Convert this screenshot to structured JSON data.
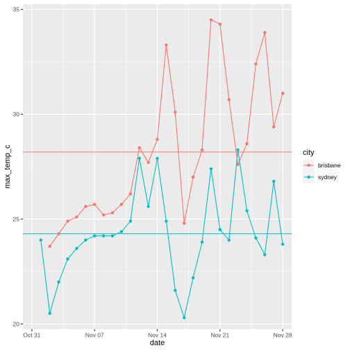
{
  "chart_data": {
    "type": "line",
    "xlabel": "date",
    "ylabel": "max_temp_c",
    "xlim": [
      "2023-10-30",
      "2023-11-29"
    ],
    "ylim": [
      19.75,
      35.25
    ],
    "x_ticks": [
      {
        "date": "2023-10-31",
        "label": "Oct 31"
      },
      {
        "date": "2023-11-07",
        "label": "Nov 07"
      },
      {
        "date": "2023-11-14",
        "label": "Nov 14"
      },
      {
        "date": "2023-11-21",
        "label": "Nov 21"
      },
      {
        "date": "2023-11-28",
        "label": "Nov 28"
      }
    ],
    "y_ticks": [
      20,
      25,
      30,
      35
    ],
    "grid": true,
    "legend": {
      "title": "city",
      "placement": "right"
    },
    "hlines": [
      {
        "series": "brisbane",
        "value": 28.2
      },
      {
        "series": "sydney",
        "value": 24.3
      }
    ],
    "series": [
      {
        "name": "brisbane",
        "color": "#F8766D",
        "points": [
          {
            "x": "2023-11-02",
            "y": 23.7
          },
          {
            "x": "2023-11-03",
            "y": 24.3
          },
          {
            "x": "2023-11-04",
            "y": 24.9
          },
          {
            "x": "2023-11-05",
            "y": 25.1
          },
          {
            "x": "2023-11-06",
            "y": 25.6
          },
          {
            "x": "2023-11-07",
            "y": 25.7
          },
          {
            "x": "2023-11-08",
            "y": 25.2
          },
          {
            "x": "2023-11-09",
            "y": 25.3
          },
          {
            "x": "2023-11-10",
            "y": 25.7
          },
          {
            "x": "2023-11-11",
            "y": 26.2
          },
          {
            "x": "2023-11-12",
            "y": 28.4
          },
          {
            "x": "2023-11-13",
            "y": 27.7
          },
          {
            "x": "2023-11-14",
            "y": 28.8
          },
          {
            "x": "2023-11-15",
            "y": 33.3
          },
          {
            "x": "2023-11-16",
            "y": 30.1
          },
          {
            "x": "2023-11-17",
            "y": 24.8
          },
          {
            "x": "2023-11-18",
            "y": 27.0
          },
          {
            "x": "2023-11-19",
            "y": 28.3
          },
          {
            "x": "2023-11-20",
            "y": 34.5
          },
          {
            "x": "2023-11-21",
            "y": 34.3
          },
          {
            "x": "2023-11-22",
            "y": 30.7
          },
          {
            "x": "2023-11-23",
            "y": 27.6
          },
          {
            "x": "2023-11-24",
            "y": 28.6
          },
          {
            "x": "2023-11-25",
            "y": 32.4
          },
          {
            "x": "2023-11-26",
            "y": 33.9
          },
          {
            "x": "2023-11-27",
            "y": 29.4
          },
          {
            "x": "2023-11-28",
            "y": 31.0
          }
        ]
      },
      {
        "name": "sydney",
        "color": "#00BFC4",
        "points": [
          {
            "x": "2023-11-01",
            "y": 24.0
          },
          {
            "x": "2023-11-02",
            "y": 20.5
          },
          {
            "x": "2023-11-03",
            "y": 22.0
          },
          {
            "x": "2023-11-04",
            "y": 23.1
          },
          {
            "x": "2023-11-05",
            "y": 23.6
          },
          {
            "x": "2023-11-06",
            "y": 24.0
          },
          {
            "x": "2023-11-07",
            "y": 24.2
          },
          {
            "x": "2023-11-08",
            "y": 24.2
          },
          {
            "x": "2023-11-09",
            "y": 24.2
          },
          {
            "x": "2023-11-10",
            "y": 24.4
          },
          {
            "x": "2023-11-11",
            "y": 24.9
          },
          {
            "x": "2023-11-12",
            "y": 27.9
          },
          {
            "x": "2023-11-13",
            "y": 25.6
          },
          {
            "x": "2023-11-14",
            "y": 27.9
          },
          {
            "x": "2023-11-15",
            "y": 24.9
          },
          {
            "x": "2023-11-16",
            "y": 21.6
          },
          {
            "x": "2023-11-17",
            "y": 20.3
          },
          {
            "x": "2023-11-18",
            "y": 22.2
          },
          {
            "x": "2023-11-19",
            "y": 23.9
          },
          {
            "x": "2023-11-20",
            "y": 27.4
          },
          {
            "x": "2023-11-21",
            "y": 24.5
          },
          {
            "x": "2023-11-22",
            "y": 24.0
          },
          {
            "x": "2023-11-23",
            "y": 28.3
          },
          {
            "x": "2023-11-24",
            "y": 25.4
          },
          {
            "x": "2023-11-25",
            "y": 24.1
          },
          {
            "x": "2023-11-26",
            "y": 23.3
          },
          {
            "x": "2023-11-27",
            "y": 26.8
          },
          {
            "x": "2023-11-28",
            "y": 23.8
          }
        ]
      }
    ]
  }
}
